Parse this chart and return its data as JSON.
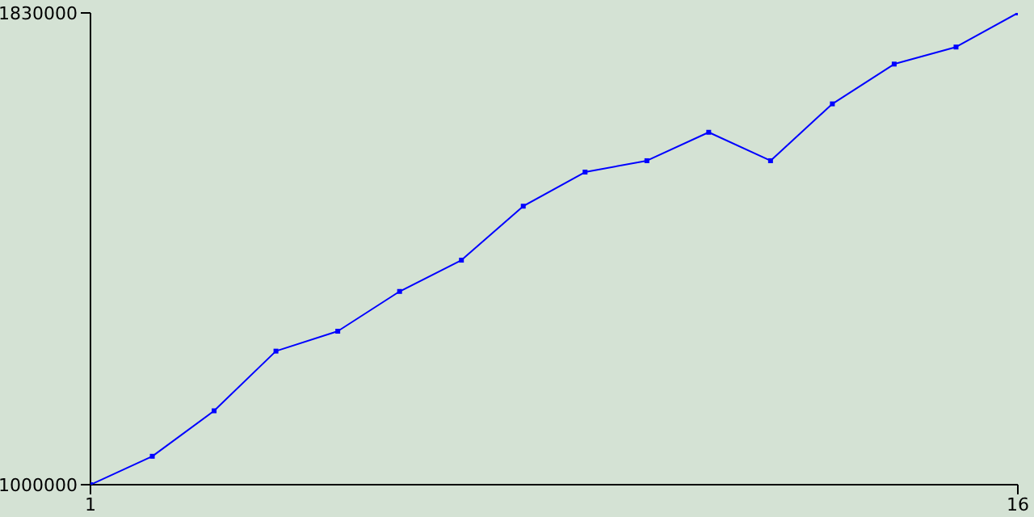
{
  "chart_data": {
    "type": "line",
    "x": [
      1,
      2,
      3,
      4,
      5,
      6,
      7,
      8,
      9,
      10,
      11,
      12,
      13,
      14,
      15,
      16
    ],
    "series": [
      {
        "color": "#0000ff",
        "values": [
          1000000,
          1050000,
          1130000,
          1235000,
          1270000,
          1340000,
          1395000,
          1490000,
          1550000,
          1570000,
          1620000,
          1570000,
          1670000,
          1740000,
          1770000,
          1830000
        ]
      }
    ],
    "xlim": [
      1,
      16
    ],
    "xticks": [
      1,
      16
    ],
    "ylim": [
      1000000,
      1830000
    ],
    "yticks": [
      1000000,
      1830000
    ],
    "grid": false,
    "legend": false,
    "marker": "square",
    "line_style": "solid"
  }
}
